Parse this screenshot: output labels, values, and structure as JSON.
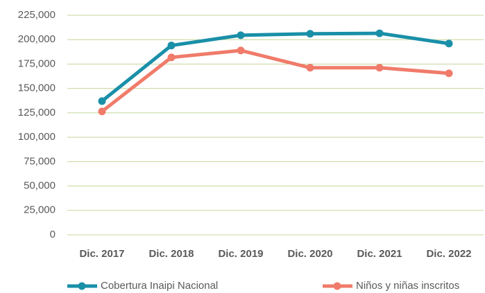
{
  "chart_data": {
    "type": "line",
    "categories": [
      "Dic. 2017",
      "Dic. 2018",
      "Dic. 2019",
      "Dic. 2020",
      "Dic. 2021",
      "Dic. 2022"
    ],
    "series": [
      {
        "name": "Cobertura Inaipi Nacional",
        "color": "#1a8fa8",
        "values": [
          137000,
          194000,
          204500,
          206000,
          206500,
          196000
        ]
      },
      {
        "name": "Niños y niñas inscritos",
        "color": "#f07b6a",
        "values": [
          126400,
          181800,
          188900,
          171200,
          171200,
          165500
        ]
      }
    ],
    "ylim": [
      0,
      225000
    ],
    "yticks": [
      0,
      {
        "value": 25000,
        "label": "25,000"
      },
      {
        "value": 50000,
        "label": "50,000"
      },
      {
        "value": 75000,
        "label": "75,000"
      },
      {
        "value": 100000,
        "label": "100,000"
      },
      {
        "value": 125000,
        "label": "125,000"
      },
      {
        "value": 150000,
        "label": "150,000"
      },
      {
        "value": 175000,
        "label": "175,000"
      },
      {
        "value": 200000,
        "label": "200,000"
      },
      {
        "value": 225000,
        "label": "225,000"
      }
    ],
    "grid": true,
    "legend": "bottom"
  }
}
